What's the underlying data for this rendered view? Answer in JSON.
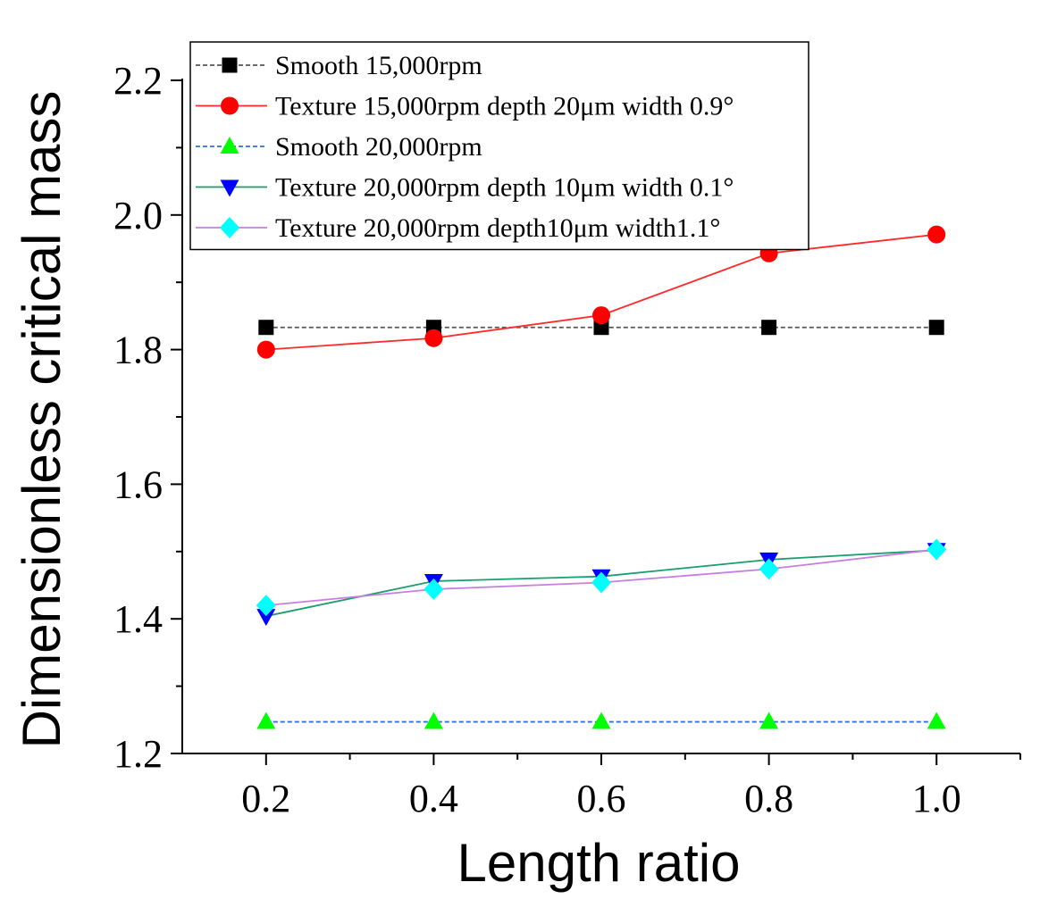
{
  "chart_data": {
    "type": "line",
    "title": "",
    "xlabel": "Length ratio",
    "ylabel": "Dimensionless critical mass",
    "xlim": [
      0.1,
      1.1
    ],
    "ylim": [
      1.2,
      2.2
    ],
    "xticks": [
      "0.2",
      "0.4",
      "0.6",
      "0.8",
      "1.0"
    ],
    "yticks": [
      "1.2",
      "1.4",
      "1.6",
      "1.8",
      "2.0",
      "2.2"
    ],
    "x": [
      0.2,
      0.4,
      0.6,
      0.8,
      1.0
    ],
    "legend_position": "top-left",
    "grid": false,
    "series": [
      {
        "name": "Smooth 15,000rpm",
        "values": [
          1.833,
          1.833,
          1.833,
          1.833,
          1.833
        ],
        "color": "#555555",
        "marker_color": "#000000",
        "marker": "square",
        "dashed": true
      },
      {
        "name": "Texture 15,000rpm depth 20μm width 0.9°",
        "values": [
          1.8,
          1.817,
          1.851,
          1.943,
          1.971
        ],
        "color": "#ff2a2a",
        "marker_color": "#ff0000",
        "marker": "circle",
        "dashed": false
      },
      {
        "name": "Smooth 20,000rpm",
        "values": [
          1.247,
          1.247,
          1.247,
          1.247,
          1.247
        ],
        "color": "#2f6fe0",
        "marker_color": "#00ff00",
        "marker": "triangle-up",
        "dashed": true
      },
      {
        "name": "Texture 20,000rpm depth 10μm width 0.1°",
        "values": [
          1.404,
          1.456,
          1.463,
          1.488,
          1.502
        ],
        "color": "#1a9e6e",
        "marker_color": "#0000ff",
        "marker": "triangle-down",
        "dashed": false
      },
      {
        "name": "Texture 20,000rpm depth10μm width1.1°",
        "values": [
          1.42,
          1.444,
          1.454,
          1.474,
          1.503
        ],
        "color": "#c77ee0",
        "marker_color": "#00ffff",
        "marker": "diamond",
        "dashed": false
      }
    ]
  }
}
